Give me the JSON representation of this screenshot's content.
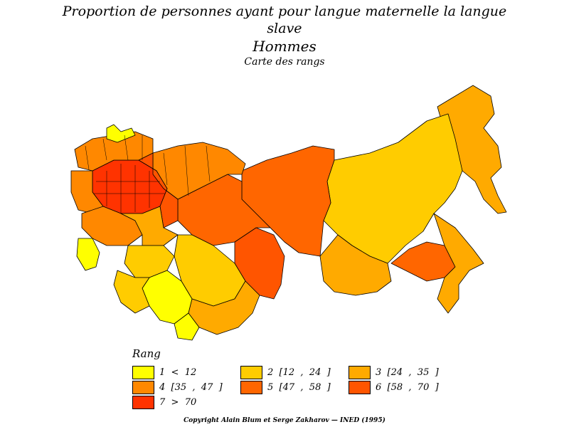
{
  "header": {
    "line1": "Proportion de personnes ayant pour langue maternelle la langue",
    "line2": "slave",
    "line3": "Hommes",
    "line4": "Carte des rangs"
  },
  "legend": {
    "title": "Rang",
    "items": [
      {
        "label": "1  <  12",
        "color": "#ffff00"
      },
      {
        "label": "2  [12  ,  24  ]",
        "color": "#ffcc00"
      },
      {
        "label": "3  [24  ,  35  ]",
        "color": "#ffaa00"
      },
      {
        "label": "4  [35  ,  47  ]",
        "color": "#ff8800"
      },
      {
        "label": "5  [47  ,  58  ]",
        "color": "#ff6600"
      },
      {
        "label": "6  [58  ,  70  ]",
        "color": "#ff5500"
      },
      {
        "label": "7  >  70",
        "color": "#ff3300"
      }
    ]
  },
  "footer": {
    "copyright": "Copyright Alain Blum et Serge Zakharov  —  INED (1995)"
  }
}
